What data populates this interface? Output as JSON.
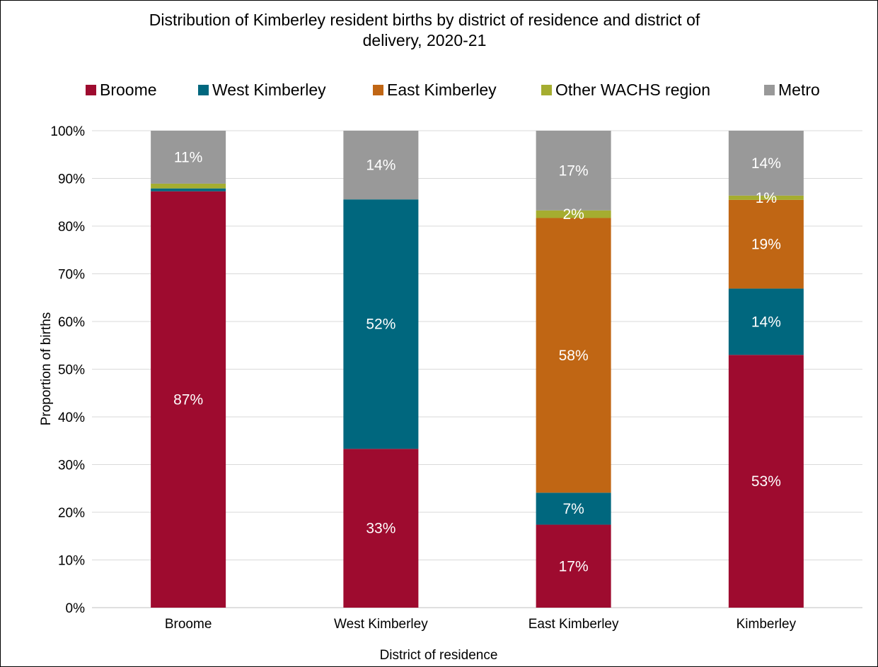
{
  "chart_data": {
    "type": "bar",
    "stacked": true,
    "title": "Distribution of Kimberley resident births by district of residence and district of delivery, 2020-21",
    "title_lines": [
      "Distribution of Kimberley resident births by district of residence and district of",
      "delivery, 2020-21"
    ],
    "xlabel": "District of residence",
    "ylabel": "Proportion of births",
    "ylim": [
      0,
      100
    ],
    "y_ticks": [
      "0%",
      "10%",
      "20%",
      "30%",
      "40%",
      "50%",
      "60%",
      "70%",
      "80%",
      "90%",
      "100%"
    ],
    "grid": true,
    "legend_position": "top",
    "categories": [
      "Broome",
      "West Kimberley",
      "East Kimberley",
      "Kimberley"
    ],
    "series": [
      {
        "name": "Broome",
        "color": "#9E0B2F",
        "values": [
          87.3,
          33.3,
          17.4,
          53.0
        ],
        "labels": [
          "87%",
          "33%",
          "17%",
          "53%"
        ]
      },
      {
        "name": "West Kimberley",
        "color": "#00677E",
        "values": [
          0.6,
          52.3,
          6.7,
          13.9
        ],
        "labels": [
          "",
          "52%",
          "7%",
          "14%"
        ]
      },
      {
        "name": "East Kimberley",
        "color": "#C06614",
        "values": [
          0.0,
          0.0,
          57.6,
          18.6
        ],
        "labels": [
          "",
          "",
          "58%",
          "19%"
        ]
      },
      {
        "name": "Other WACHS region",
        "color": "#A5AD30",
        "values": [
          1.0,
          0.0,
          1.6,
          0.9
        ],
        "labels": [
          "",
          "",
          "2%",
          "1%"
        ]
      },
      {
        "name": "Metro",
        "color": "#999999",
        "values": [
          11.1,
          14.4,
          16.7,
          13.6
        ],
        "labels": [
          "11%",
          "14%",
          "17%",
          "14%"
        ]
      }
    ]
  }
}
